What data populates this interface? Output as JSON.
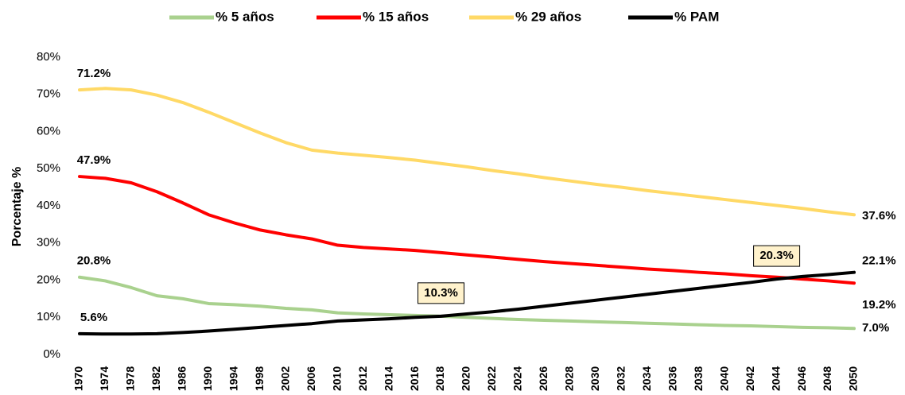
{
  "chart_data": {
    "type": "line",
    "ylabel": "Porcentaje %",
    "categories": [
      "1970",
      "1974",
      "1978",
      "1982",
      "1986",
      "1990",
      "1994",
      "1998",
      "2002",
      "2006",
      "2010",
      "2012",
      "2014",
      "2016",
      "2018",
      "2020",
      "2022",
      "2024",
      "2026",
      "2028",
      "2030",
      "2032",
      "2034",
      "2036",
      "2038",
      "2040",
      "2042",
      "2044",
      "2046",
      "2048",
      "2050"
    ],
    "ylim": [
      0,
      80
    ],
    "yticks": [
      {
        "value": 0,
        "label": "0%"
      },
      {
        "value": 10,
        "label": "10%"
      },
      {
        "value": 20,
        "label": "20%"
      },
      {
        "value": 30,
        "label": "30%"
      },
      {
        "value": 40,
        "label": "40%"
      },
      {
        "value": 50,
        "label": "50%"
      },
      {
        "value": 60,
        "label": "60%"
      },
      {
        "value": 70,
        "label": "70%"
      },
      {
        "value": 80,
        "label": "80%"
      }
    ],
    "grid": false,
    "legend": "top",
    "series": [
      {
        "name": "% 5 años",
        "color": "#a9d18e",
        "values": [
          20.8,
          19.8,
          18.0,
          15.8,
          15.0,
          13.7,
          13.4,
          13.0,
          12.4,
          12.0,
          11.2,
          10.9,
          10.7,
          10.5,
          10.3,
          10.0,
          9.7,
          9.4,
          9.2,
          9.0,
          8.8,
          8.6,
          8.4,
          8.2,
          8.0,
          7.8,
          7.7,
          7.5,
          7.3,
          7.2,
          7.0
        ],
        "value_labels": [
          "20.8%",
          null,
          null,
          null,
          null,
          null,
          null,
          null,
          null,
          null,
          null,
          null,
          null,
          null,
          null,
          null,
          null,
          null,
          null,
          null,
          null,
          null,
          null,
          null,
          null,
          null,
          null,
          null,
          null,
          null,
          "7.0%"
        ]
      },
      {
        "name": "% 15 años",
        "color": "#ff0000",
        "values": [
          47.9,
          47.4,
          46.2,
          43.8,
          40.8,
          37.6,
          35.4,
          33.5,
          32.2,
          31.1,
          29.4,
          28.8,
          28.4,
          28.0,
          27.4,
          26.8,
          26.2,
          25.6,
          25.0,
          24.5,
          24.0,
          23.5,
          23.0,
          22.6,
          22.1,
          21.7,
          21.2,
          20.8,
          20.3,
          19.8,
          19.2
        ],
        "value_labels": [
          "47.9%",
          null,
          null,
          null,
          null,
          null,
          null,
          null,
          null,
          null,
          null,
          null,
          null,
          null,
          null,
          null,
          null,
          null,
          null,
          null,
          null,
          null,
          null,
          null,
          null,
          null,
          null,
          null,
          null,
          null,
          "19.2%"
        ]
      },
      {
        "name": "% 29 años",
        "color": "#ffd966",
        "values": [
          71.2,
          71.6,
          71.2,
          69.8,
          67.8,
          65.2,
          62.4,
          59.6,
          57.0,
          55.0,
          54.2,
          53.6,
          53.0,
          52.3,
          51.4,
          50.5,
          49.5,
          48.6,
          47.6,
          46.7,
          45.8,
          45.0,
          44.1,
          43.3,
          42.5,
          41.7,
          40.9,
          40.1,
          39.3,
          38.4,
          37.6
        ],
        "value_labels": [
          "71.2%",
          null,
          null,
          null,
          null,
          null,
          null,
          null,
          null,
          null,
          null,
          null,
          null,
          null,
          null,
          null,
          null,
          null,
          null,
          null,
          null,
          null,
          null,
          null,
          null,
          null,
          null,
          null,
          null,
          null,
          "37.6%"
        ]
      },
      {
        "name": "% PAM",
        "color": "#000000",
        "values": [
          5.6,
          5.5,
          5.5,
          5.6,
          5.9,
          6.3,
          6.8,
          7.3,
          7.8,
          8.3,
          9.0,
          9.3,
          9.6,
          10.0,
          10.3,
          10.9,
          11.5,
          12.2,
          13.0,
          13.8,
          14.6,
          15.4,
          16.2,
          17.0,
          17.8,
          18.6,
          19.4,
          20.3,
          21.0,
          21.5,
          22.1
        ],
        "value_labels": [
          "5.6%",
          null,
          null,
          null,
          null,
          null,
          null,
          null,
          null,
          null,
          null,
          null,
          null,
          null,
          "10.3%",
          null,
          null,
          null,
          null,
          null,
          null,
          null,
          null,
          null,
          null,
          null,
          null,
          "20.3%",
          null,
          null,
          "22.1%"
        ]
      }
    ]
  }
}
